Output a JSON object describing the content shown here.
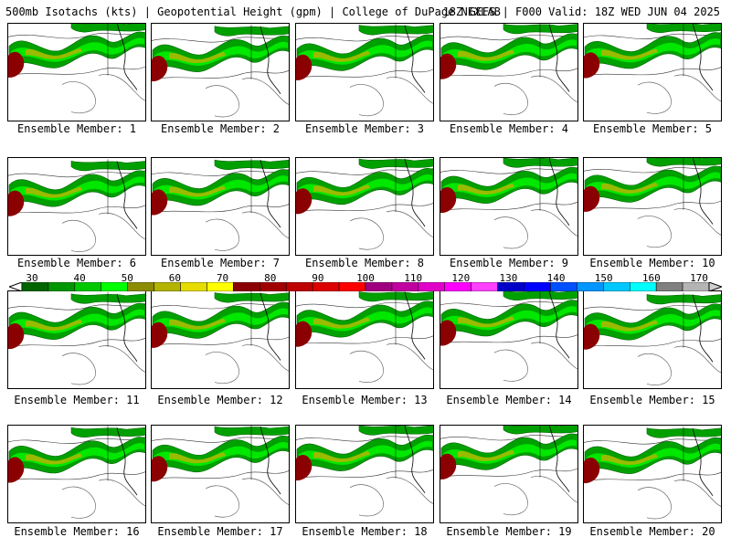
{
  "header": {
    "left_title": "500mb Isotachs (kts) | Geopotential Height (gpm) | College of DuPage NEXLAB",
    "right_title": "18Z GEFS | F000 Valid: 18Z WED JUN 04 2025"
  },
  "colorbar": {
    "unit": "kts",
    "tick_labels": [
      "30",
      "40",
      "50",
      "60",
      "70",
      "80",
      "90",
      "100",
      "110",
      "120",
      "130",
      "140",
      "150",
      "160",
      "170"
    ],
    "colors": [
      "#006400",
      "#009600",
      "#00c800",
      "#00ff00",
      "#8c8c00",
      "#b4b400",
      "#e6dc00",
      "#ffff00",
      "#8b0000",
      "#a00000",
      "#be0000",
      "#dc0000",
      "#ff0000",
      "#a0007f",
      "#c000a0",
      "#e000c8",
      "#ff00ff",
      "#ff40ff",
      "#0000c8",
      "#0000ff",
      "#0050ff",
      "#0096ff",
      "#00c8ff",
      "#00ffff",
      "#808080",
      "#b4b4b4"
    ]
  },
  "panels": [
    {
      "label": "Ensemble Member: 1"
    },
    {
      "label": "Ensemble Member: 2"
    },
    {
      "label": "Ensemble Member: 3"
    },
    {
      "label": "Ensemble Member: 4"
    },
    {
      "label": "Ensemble Member: 5"
    },
    {
      "label": "Ensemble Member: 6"
    },
    {
      "label": "Ensemble Member: 7"
    },
    {
      "label": "Ensemble Member: 8"
    },
    {
      "label": "Ensemble Member: 9"
    },
    {
      "label": "Ensemble Member: 10"
    },
    {
      "label": "Ensemble Member: 11"
    },
    {
      "label": "Ensemble Member: 12"
    },
    {
      "label": "Ensemble Member: 13"
    },
    {
      "label": "Ensemble Member: 14"
    },
    {
      "label": "Ensemble Member: 15"
    },
    {
      "label": "Ensemble Member: 16"
    },
    {
      "label": "Ensemble Member: 17"
    },
    {
      "label": "Ensemble Member: 18"
    },
    {
      "label": "Ensemble Member: 19"
    },
    {
      "label": "Ensemble Member: 20"
    }
  ]
}
